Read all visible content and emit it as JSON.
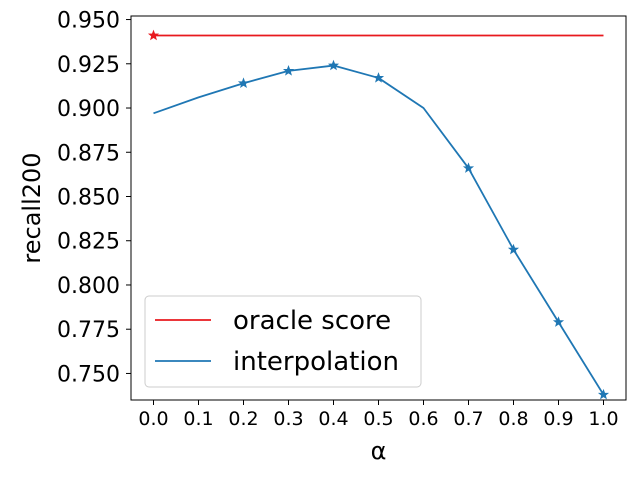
{
  "chart_data": {
    "type": "line",
    "title": "",
    "xlabel": "α",
    "ylabel": "recall200",
    "xlim": [
      -0.05,
      1.05
    ],
    "ylim": [
      0.735,
      0.952
    ],
    "x_ticks": [
      0.0,
      0.1,
      0.2,
      0.3,
      0.4,
      0.5,
      0.6,
      0.7,
      0.8,
      0.9,
      1.0
    ],
    "x_tick_labels": [
      "0.0",
      "0.1",
      "0.2",
      "0.3",
      "0.4",
      "0.5",
      "0.6",
      "0.7",
      "0.8",
      "0.9",
      "1.0"
    ],
    "y_ticks": [
      0.75,
      0.775,
      0.8,
      0.825,
      0.85,
      0.875,
      0.9,
      0.925,
      0.95
    ],
    "y_tick_labels": [
      "0.750",
      "0.775",
      "0.800",
      "0.825",
      "0.850",
      "0.875",
      "0.900",
      "0.925",
      "0.950"
    ],
    "grid": false,
    "legend_position": "lower-left",
    "series": [
      {
        "name": "oracle score",
        "color": "#e8191e",
        "x": [
          0.0,
          1.0
        ],
        "y": [
          0.941,
          0.941
        ],
        "marker_indices": [
          0
        ]
      },
      {
        "name": "interpolation",
        "color": "#1f77b4",
        "x": [
          0.0,
          0.1,
          0.2,
          0.3,
          0.4,
          0.5,
          0.6,
          0.7,
          0.8,
          0.9,
          1.0
        ],
        "y": [
          0.897,
          0.906,
          0.914,
          0.921,
          0.924,
          0.917,
          0.9,
          0.866,
          0.82,
          0.779,
          0.738
        ],
        "marker_indices": [
          2,
          3,
          4,
          5,
          7,
          8,
          9,
          10
        ]
      }
    ]
  }
}
